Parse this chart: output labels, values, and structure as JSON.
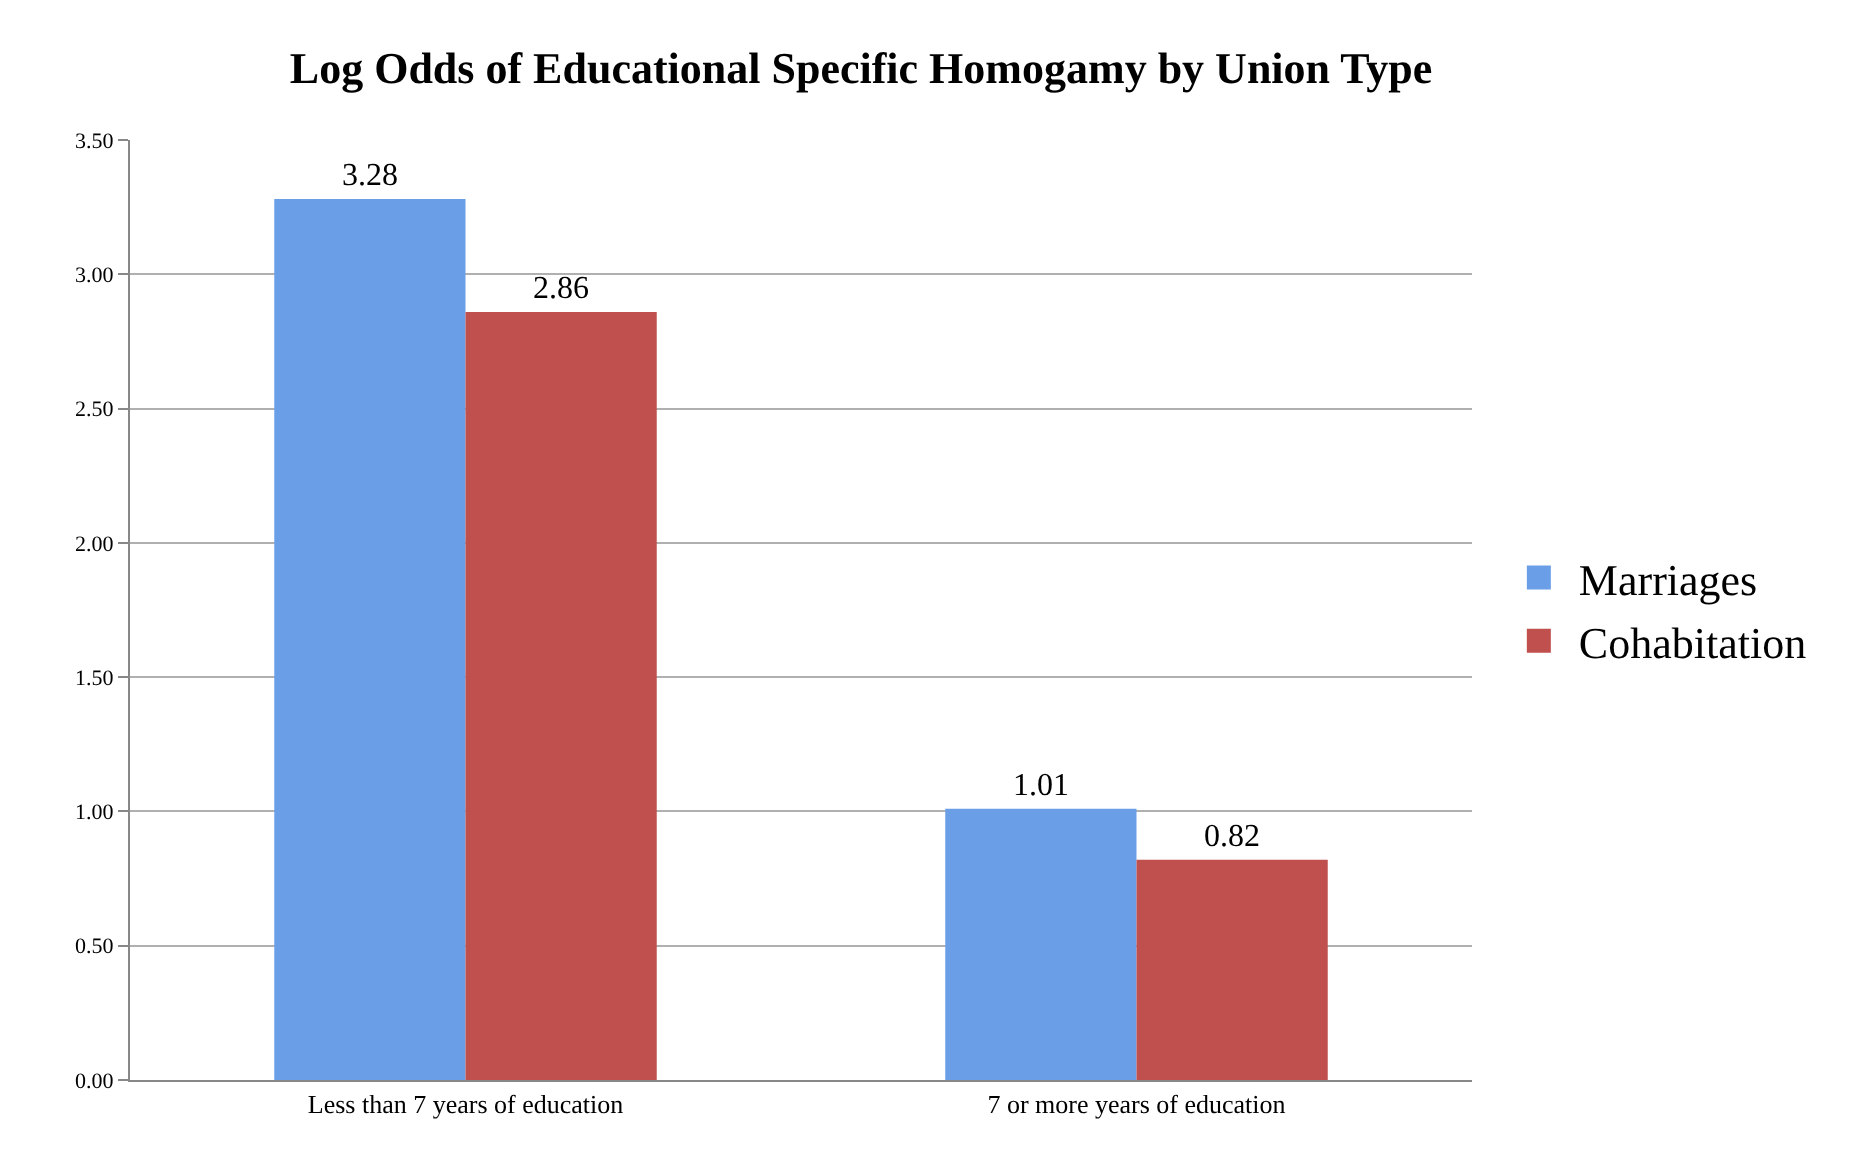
{
  "chart_data": {
    "type": "bar",
    "title": "Log Odds of Educational Specific Homogamy by Union Type",
    "categories": [
      "Less than 7 years of education",
      "7 or more years of education"
    ],
    "series": [
      {
        "name": "Marriages",
        "color": "#6a9fe8",
        "values": [
          3.28,
          1.01
        ]
      },
      {
        "name": "Cohabitation",
        "color": "#c0504d",
        "values": [
          2.86,
          0.82
        ]
      }
    ],
    "ylim": [
      0,
      3.5
    ],
    "yticks": [
      {
        "value": 0,
        "label": "0.00"
      },
      {
        "value": 0.5,
        "label": "0.50"
      },
      {
        "value": 1,
        "label": "1.00"
      },
      {
        "value": 1.5,
        "label": "1.50"
      },
      {
        "value": 2,
        "label": "2.00"
      },
      {
        "value": 2.5,
        "label": "2.50"
      },
      {
        "value": 3,
        "label": "3.00"
      },
      {
        "value": 3.5,
        "label": "3.50"
      }
    ],
    "grid": "y",
    "legend": "right",
    "data_labels": true
  }
}
